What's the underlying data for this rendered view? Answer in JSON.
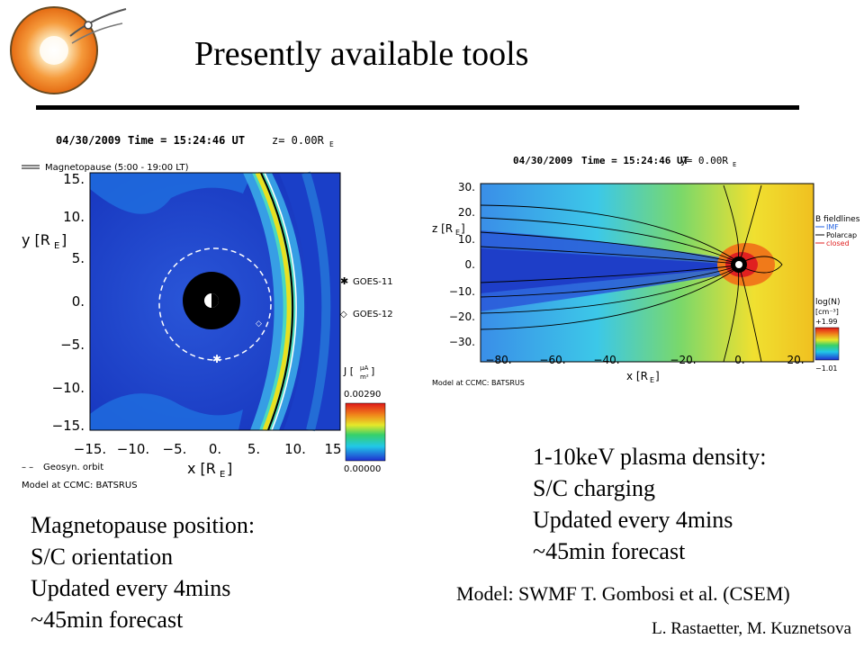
{
  "slide": {
    "title": "Presently available tools",
    "credit": "L. Rastaetter, M. Kuznetsova",
    "model_credit": "Model: SWMF T. Gombosi et al. (CSEM)"
  },
  "left_caption": {
    "lines": [
      "Magnetopause position:",
      "S/C orientation",
      "Updated every 4mins",
      "~45min forecast"
    ]
  },
  "right_caption": {
    "lines": [
      "1-10keV plasma density:",
      "S/C charging",
      "Updated every 4mins",
      "~45min forecast"
    ]
  },
  "left_plot": {
    "header_date": "04/30/2009",
    "header_time": "Time = 15:24:46 UT",
    "header_plane": "z= 0.00R",
    "header_plane_sub": "E",
    "legend_magnetopause": "Magnetopause (5:00 - 19:00 LT)",
    "legend_geosyn": "Geosyn. orbit",
    "model_note": "Model at CCMC: BATSRUS",
    "ylabel": "y [R",
    "ylabel_sub": "E",
    "ylabel_end": "]",
    "xlabel": "x [R",
    "xlabel_sub": "E",
    "xlabel_end": "]",
    "yticks": [
      "15.",
      "10.",
      "5.",
      "0.",
      "−5.",
      "−10.",
      "−15."
    ],
    "xticks": [
      "−15.",
      "−10.",
      "−5.",
      "0.",
      "5.",
      "10.",
      "15"
    ],
    "goes11": "GOES-11",
    "goes12": "GOES-12",
    "cbar_label": "J [",
    "cbar_unit_num": "μA",
    "cbar_unit_den": "m²",
    "cbar_label_end": "]",
    "cbar_max": "0.00290",
    "cbar_min": "0.00000"
  },
  "right_plot": {
    "header_date": "04/30/2009",
    "header_time": "Time = 15:24:46 UT",
    "header_plane": "y= 0.00R",
    "header_plane_sub": "E",
    "ylabel": "z [R",
    "ylabel_sub": "E",
    "ylabel_end": "]",
    "xlabel": "x [R",
    "xlabel_sub": "E",
    "xlabel_end": "]",
    "yticks": [
      "30.",
      "20.",
      "10.",
      "0.",
      "−10.",
      "−20.",
      "−30."
    ],
    "xticks": [
      "−80.",
      "−60.",
      "−40.",
      "−20.",
      "0.",
      "20."
    ],
    "model_note": "Model at CCMC: BATSRUS",
    "legend_title": "B fieldlines",
    "legend_imf": "IMF",
    "legend_polarcap": "Polarcap",
    "legend_closed": "closed",
    "cbar_label": "log(N)",
    "cbar_unit": "[cm⁻³]",
    "cbar_max": "+1.99",
    "cbar_min": "−1.01"
  },
  "colors": {
    "plot_bg_blue": "#1a3fc8",
    "accent_orange": "#f07a1a"
  }
}
